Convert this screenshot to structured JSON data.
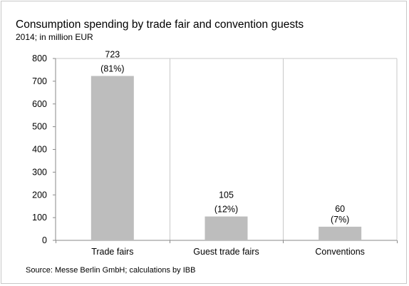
{
  "chart_data": {
    "type": "bar",
    "title": "Consumption spending by trade fair and convention guests",
    "subtitle": "2014; in million EUR",
    "source": "Source: Messe Berlin GmbH; calculations by IBB",
    "categories": [
      "Trade fairs",
      "Guest trade fairs",
      "Conventions"
    ],
    "values": [
      723,
      105,
      60
    ],
    "value_labels": [
      "723",
      "105",
      "60"
    ],
    "share_labels": [
      "(81%)",
      "(12%)",
      "(7%)"
    ],
    "ylim": [
      0,
      800
    ],
    "yticks": [
      0,
      100,
      200,
      300,
      400,
      500,
      600,
      700,
      800
    ],
    "bar_color": "#bdbdbd",
    "grid_color": "#c8c8c8",
    "grid": "vertical category separators"
  }
}
